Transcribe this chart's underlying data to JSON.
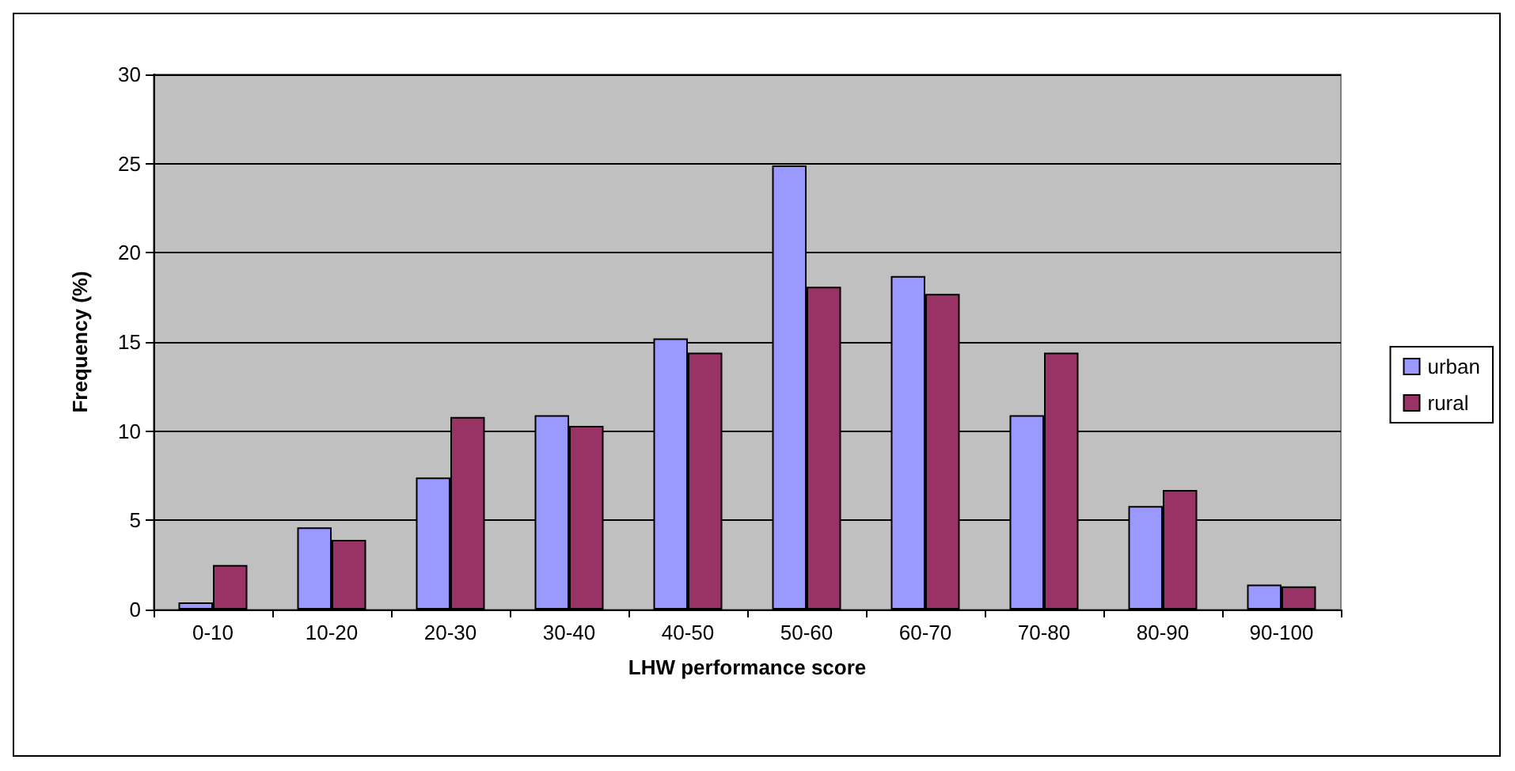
{
  "chart_data": {
    "type": "bar",
    "xlabel": "LHW performance score",
    "ylabel": "Frequency (%)",
    "categories": [
      "0-10",
      "10-20",
      "20-30",
      "30-40",
      "40-50",
      "50-60",
      "60-70",
      "70-80",
      "80-90",
      "90-100"
    ],
    "series": [
      {
        "name": "urban",
        "color": "#9999ff",
        "values": [
          0.4,
          4.6,
          7.4,
          10.9,
          15.2,
          24.9,
          18.7,
          10.9,
          5.8,
          1.4
        ]
      },
      {
        "name": "rural",
        "color": "#993366",
        "values": [
          2.5,
          3.9,
          10.8,
          10.3,
          14.4,
          18.1,
          17.7,
          14.4,
          6.7,
          1.3
        ]
      }
    ],
    "ylim": [
      0,
      30
    ],
    "yticks": [
      0,
      5,
      10,
      15,
      20,
      25,
      30
    ],
    "grid": "y",
    "legend": "right"
  }
}
